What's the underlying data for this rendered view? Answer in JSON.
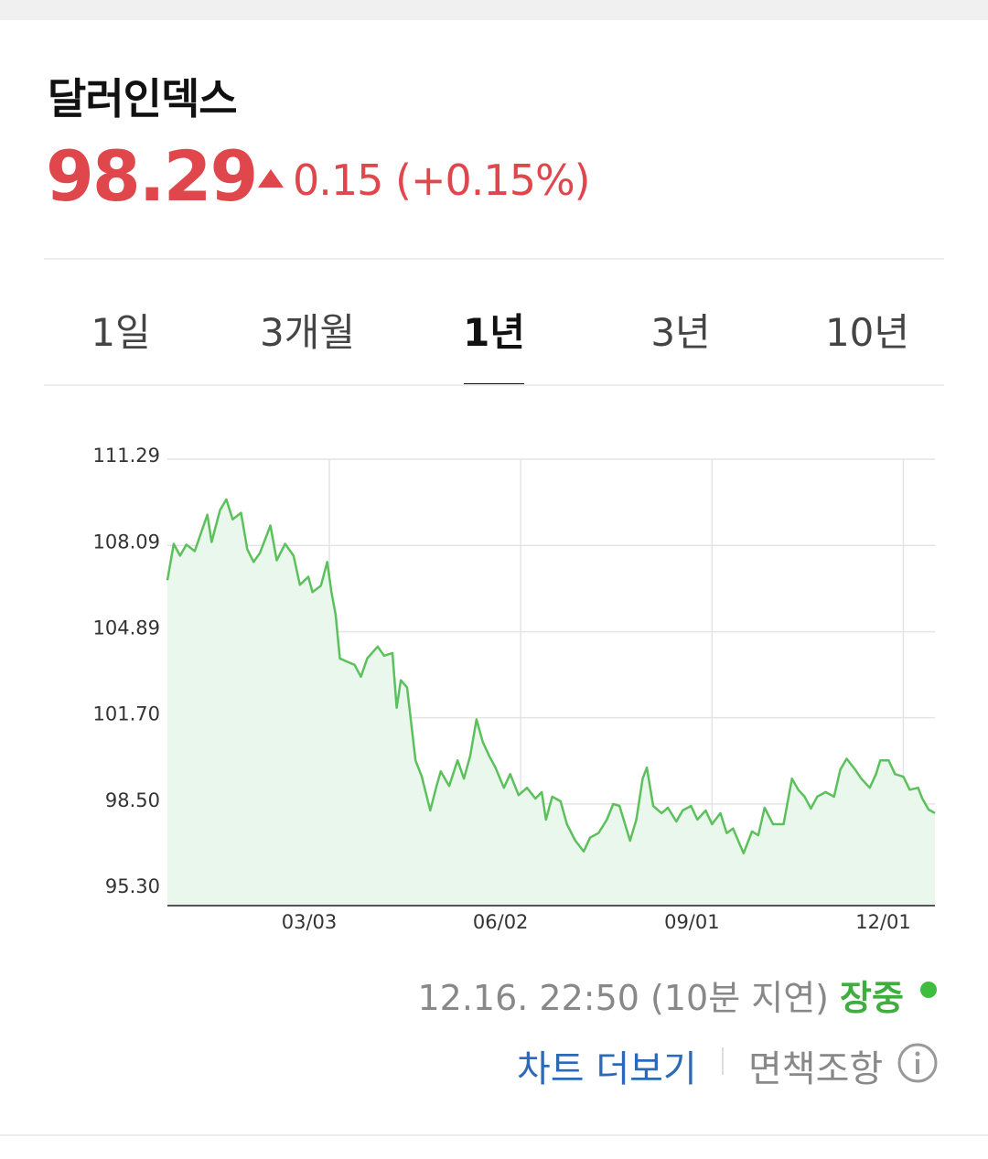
{
  "header": {
    "title": "달러인덱스",
    "price": "98.29",
    "change": "0.15",
    "change_percent": "(+0.15%)"
  },
  "tabs": {
    "items": [
      "1일",
      "3개월",
      "1년",
      "3년",
      "10년"
    ],
    "active": 2
  },
  "footer": {
    "timestamp": "12.16. 22:50",
    "delay": "(10분 지연)",
    "status": "장중",
    "more_link": "차트 더보기",
    "disclaimer": "면책조항"
  },
  "chart_data": {
    "type": "area",
    "color": "#5cc05c",
    "fill": "#e9f7ec",
    "grid": true,
    "xlim": [
      0,
      365
    ],
    "xticks": [
      {
        "value": 77,
        "label": "03/03"
      },
      {
        "value": 168,
        "label": "06/02"
      },
      {
        "value": 259,
        "label": "09/01"
      },
      {
        "value": 350,
        "label": "12/01"
      }
    ],
    "ylim": [
      94.73,
      111.29
    ],
    "yticks": [
      111.29,
      108.09,
      104.89,
      {
        "value": 101.7,
        "label": "101.70"
      },
      {
        "value": 98.5,
        "label": "98.50"
      },
      {
        "value": 95.3,
        "label": "95.30"
      }
    ],
    "x": [
      0,
      3,
      6,
      9,
      13,
      16,
      19,
      21,
      25,
      28,
      31,
      35,
      38,
      41,
      44,
      49,
      52,
      56,
      60,
      63,
      67,
      69,
      73,
      76,
      78,
      80,
      82,
      86,
      89,
      92,
      95,
      100,
      103,
      107,
      109,
      111,
      114,
      116,
      118,
      121,
      125,
      128,
      130,
      134,
      138,
      141,
      144,
      147,
      150,
      153,
      156,
      160,
      163,
      167,
      171,
      175,
      178,
      180,
      183,
      187,
      190,
      194,
      198,
      201,
      205,
      209,
      212,
      215,
      220,
      223,
      226,
      228,
      231,
      235,
      238,
      242,
      245,
      249,
      252,
      256,
      259,
      263,
      266,
      269,
      274,
      278,
      281,
      284,
      288,
      293,
      297,
      300,
      303,
      306,
      309,
      313,
      317,
      320,
      323,
      327,
      330,
      334,
      337,
      339,
      343,
      346,
      350,
      353,
      357,
      359,
      362,
      365
    ],
    "values": [
      106.8,
      108.15,
      107.71,
      108.12,
      107.88,
      108.56,
      109.23,
      108.22,
      109.4,
      109.8,
      109.06,
      109.3,
      107.95,
      107.48,
      107.81,
      108.83,
      107.54,
      108.15,
      107.71,
      106.63,
      106.93,
      106.36,
      106.6,
      107.48,
      106.36,
      105.52,
      103.9,
      103.76,
      103.66,
      103.22,
      103.9,
      104.34,
      104.0,
      104.1,
      102.07,
      103.09,
      102.82,
      101.47,
      100.12,
      99.51,
      98.26,
      99.17,
      99.71,
      99.17,
      100.12,
      99.44,
      100.29,
      101.64,
      100.79,
      100.29,
      99.85,
      99.1,
      99.61,
      98.83,
      99.1,
      98.7,
      98.94,
      97.92,
      98.77,
      98.6,
      97.75,
      97.14,
      96.74,
      97.25,
      97.42,
      97.92,
      98.5,
      98.43,
      97.14,
      97.92,
      99.44,
      99.85,
      98.43,
      98.16,
      98.36,
      97.85,
      98.26,
      98.43,
      97.92,
      98.26,
      97.75,
      98.16,
      97.42,
      97.59,
      96.67,
      97.48,
      97.34,
      98.36,
      97.75,
      97.75,
      99.44,
      99.03,
      98.77,
      98.33,
      98.77,
      98.94,
      98.77,
      99.78,
      100.18,
      99.78,
      99.44,
      99.1,
      99.61,
      100.12,
      100.12,
      99.61,
      99.51,
      99.03,
      99.1,
      98.7,
      98.29,
      98.16
    ]
  }
}
